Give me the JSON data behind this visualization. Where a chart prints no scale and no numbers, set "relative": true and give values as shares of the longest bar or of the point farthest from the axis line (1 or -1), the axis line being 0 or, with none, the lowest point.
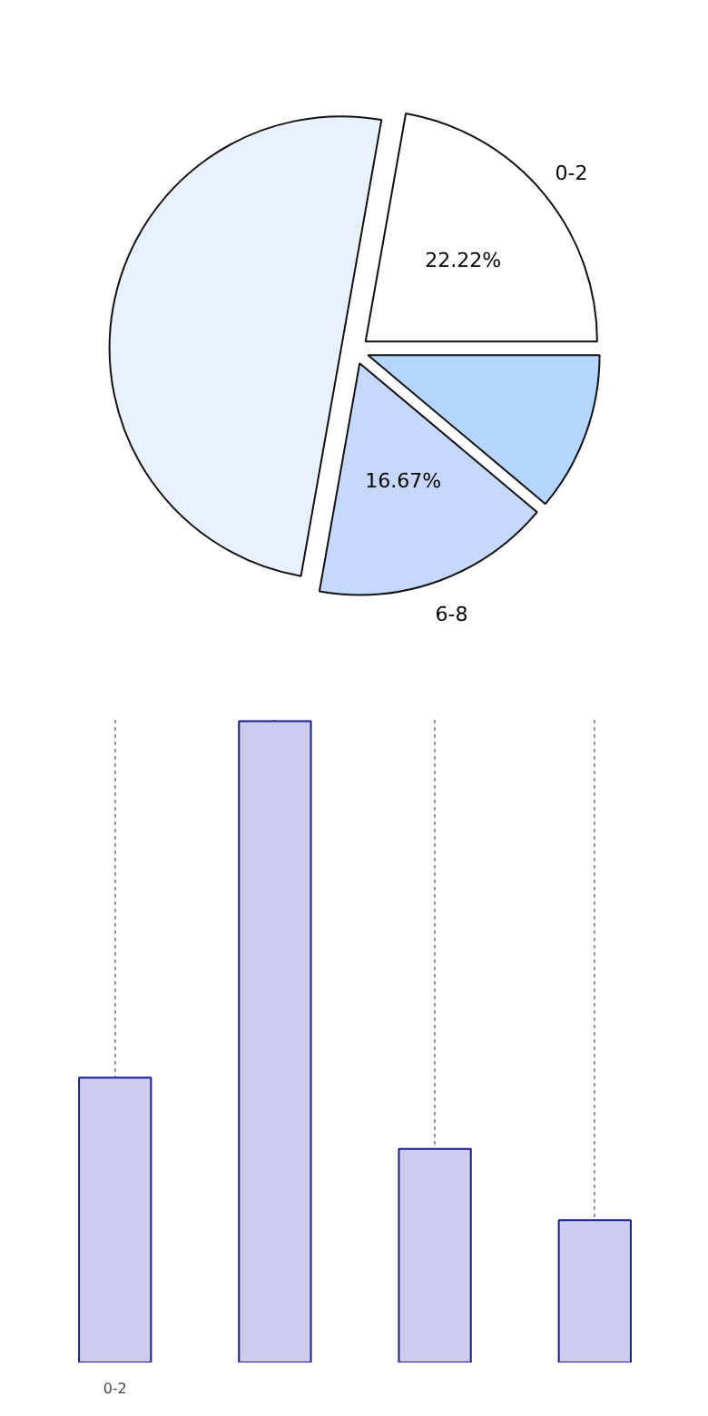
{
  "chart_data": [
    {
      "type": "pie",
      "categories": [
        "0-2",
        null,
        "6-8",
        null
      ],
      "values": [
        22.22,
        50,
        16.67,
        11.11
      ],
      "colors": [
        "#ffffff",
        "#eaf1fe",
        "#c6d8fd",
        "#b3d5fe"
      ],
      "value_labels": [
        "22.22%",
        null,
        "16.67%",
        null
      ]
    },
    {
      "type": "bar",
      "categories": [
        "0-2",
        null,
        null,
        null
      ],
      "values": [
        0.444,
        1,
        0.333,
        0.222
      ],
      "color": "#ccccee",
      "relative": true,
      "grid": "x"
    }
  ]
}
